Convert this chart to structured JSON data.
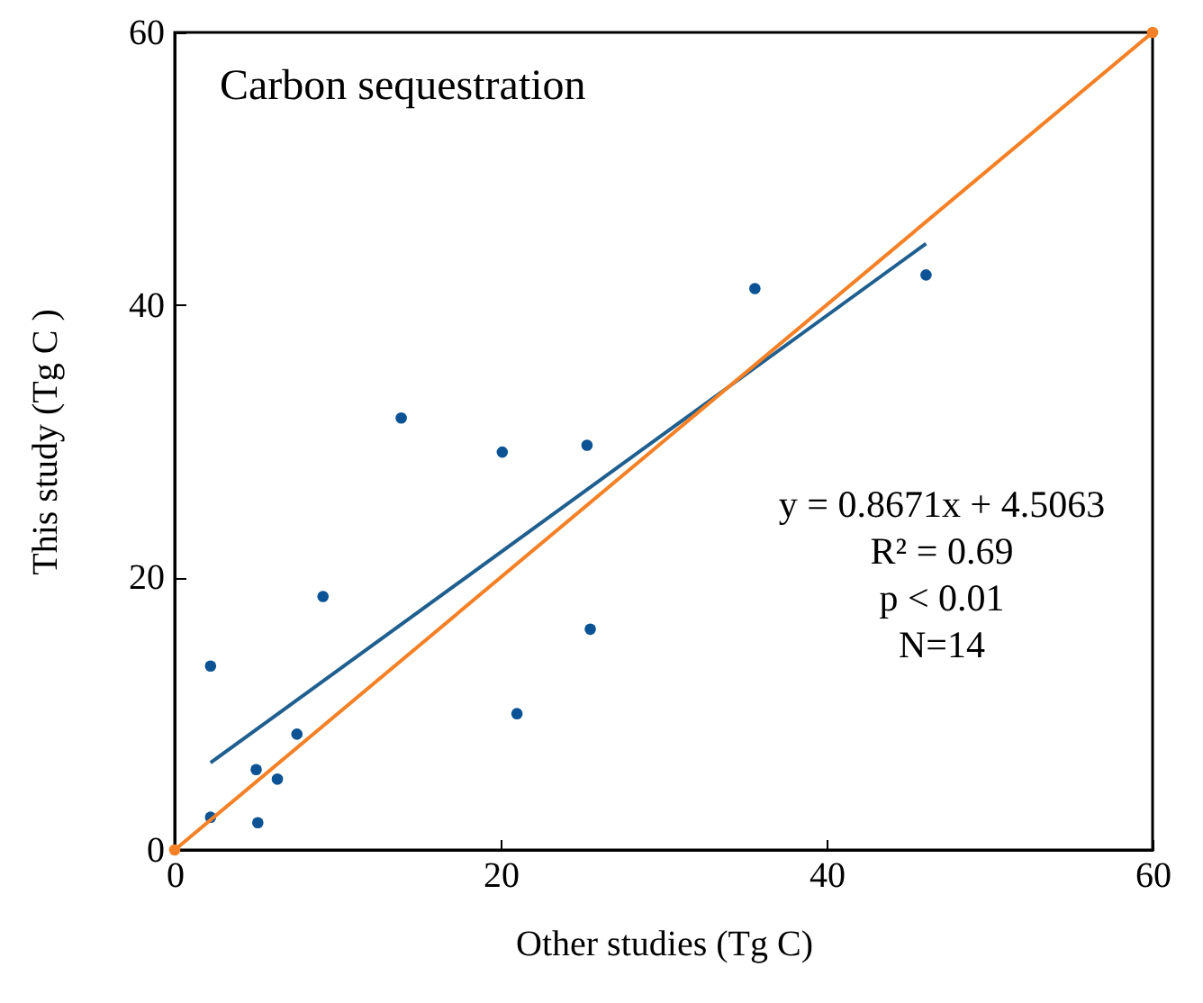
{
  "chart_data": {
    "type": "scatter",
    "title": "Carbon sequestration",
    "xlabel": "Other studies (Tg C)",
    "ylabel": "This study  (Tg C )",
    "x": [
      2.2,
      2.2,
      5.0,
      5.1,
      6.3,
      7.5,
      9.1,
      13.9,
      20.1,
      21.0,
      25.3,
      25.5,
      35.6,
      46.1
    ],
    "series": [
      {
        "color": "#0b5394",
        "values": [
          13.5,
          2.4,
          5.9,
          2.0,
          5.2,
          8.5,
          18.6,
          31.7,
          29.2,
          10.0,
          29.7,
          16.2,
          41.2,
          42.2
        ]
      },
      {
        "type": "line",
        "color": "#1f5f8f",
        "x": [
          2.2,
          46.1
        ],
        "values": [
          6.4,
          44.5
        ],
        "marker": "none"
      },
      {
        "type": "line",
        "color": "#f58025",
        "x": [
          0,
          60
        ],
        "values": [
          0,
          60
        ],
        "marker": "circle"
      }
    ],
    "annotations": [
      "y = 0.8671x + 4.5063",
      "R² = 0.69",
      "p < 0.01",
      "N=14"
    ],
    "xlim": [
      0,
      60
    ],
    "ylim": [
      0,
      60
    ],
    "xticks": [
      0,
      20,
      40,
      60
    ],
    "yticks": [
      0,
      20,
      40,
      60
    ],
    "grid": false
  }
}
